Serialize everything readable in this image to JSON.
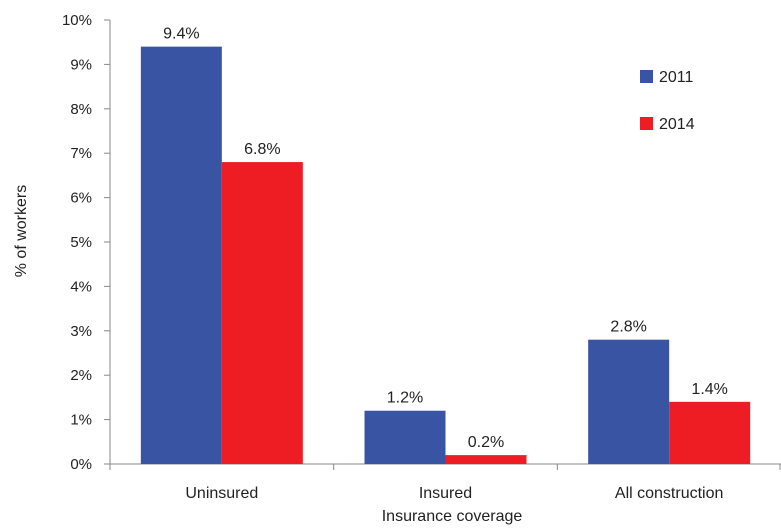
{
  "chart_data": {
    "type": "bar",
    "title": "",
    "xlabel": "Insurance coverage",
    "ylabel": "% of workers",
    "categories": [
      "Uninsured",
      "Insured",
      "All construction"
    ],
    "series": [
      {
        "name": "2011",
        "values": [
          9.4,
          1.2,
          2.8
        ],
        "labels": [
          "9.4%",
          "1.2%",
          "2.8%"
        ],
        "color": "#3A54A4"
      },
      {
        "name": "2014",
        "values": [
          6.8,
          0.2,
          1.4
        ],
        "labels": [
          "6.8%",
          "0.2%",
          "1.4%"
        ],
        "color": "#EE1D24"
      }
    ],
    "ylim": [
      0,
      10
    ],
    "yticks": [
      "0%",
      "1%",
      "2%",
      "3%",
      "4%",
      "5%",
      "6%",
      "7%",
      "8%",
      "9%",
      "10%"
    ],
    "grid": false,
    "legend_position": "top-right"
  }
}
